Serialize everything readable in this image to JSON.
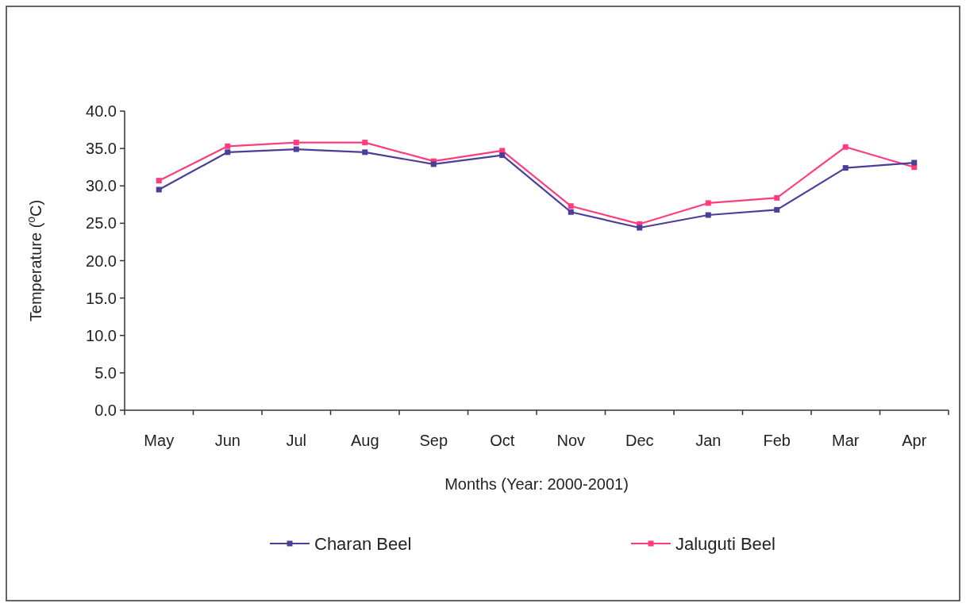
{
  "chart_data": {
    "type": "line",
    "xlabel": "Months (Year: 2000-2001)",
    "ylabel": "Temperature ($^{o}$C)",
    "categories": [
      "May",
      "Jun",
      "Jul",
      "Aug",
      "Sep",
      "Oct",
      "Nov",
      "Dec",
      "Jan",
      "Feb",
      "Mar",
      "Apr"
    ],
    "series": [
      {
        "name": "Charan Beel",
        "color": "#4b3f99",
        "values": [
          29.5,
          34.5,
          34.9,
          34.5,
          32.9,
          34.1,
          26.5,
          24.4,
          26.1,
          26.8,
          32.4,
          33.1
        ]
      },
      {
        "name": "Jaluguti Beel",
        "color": "#ff3c7f",
        "values": [
          30.7,
          35.3,
          35.8,
          35.8,
          33.3,
          34.7,
          27.3,
          24.9,
          27.7,
          28.4,
          35.2,
          32.5
        ]
      }
    ],
    "ylim": [
      0,
      40
    ],
    "yticks": [
      {
        "value": 0,
        "label": "0.0"
      },
      {
        "value": 5,
        "label": "5.0"
      },
      {
        "value": 10,
        "label": "10.0"
      },
      {
        "value": 15,
        "label": "15.0"
      },
      {
        "value": 20,
        "label": "20.0"
      },
      {
        "value": 25,
        "label": "25.0"
      },
      {
        "value": 30,
        "label": "30.0"
      },
      {
        "value": 35,
        "label": "35.0"
      },
      {
        "value": 40,
        "label": "40.0"
      }
    ],
    "grid": false,
    "legend": "bottom",
    "marker": "square",
    "line_style": "solid"
  }
}
